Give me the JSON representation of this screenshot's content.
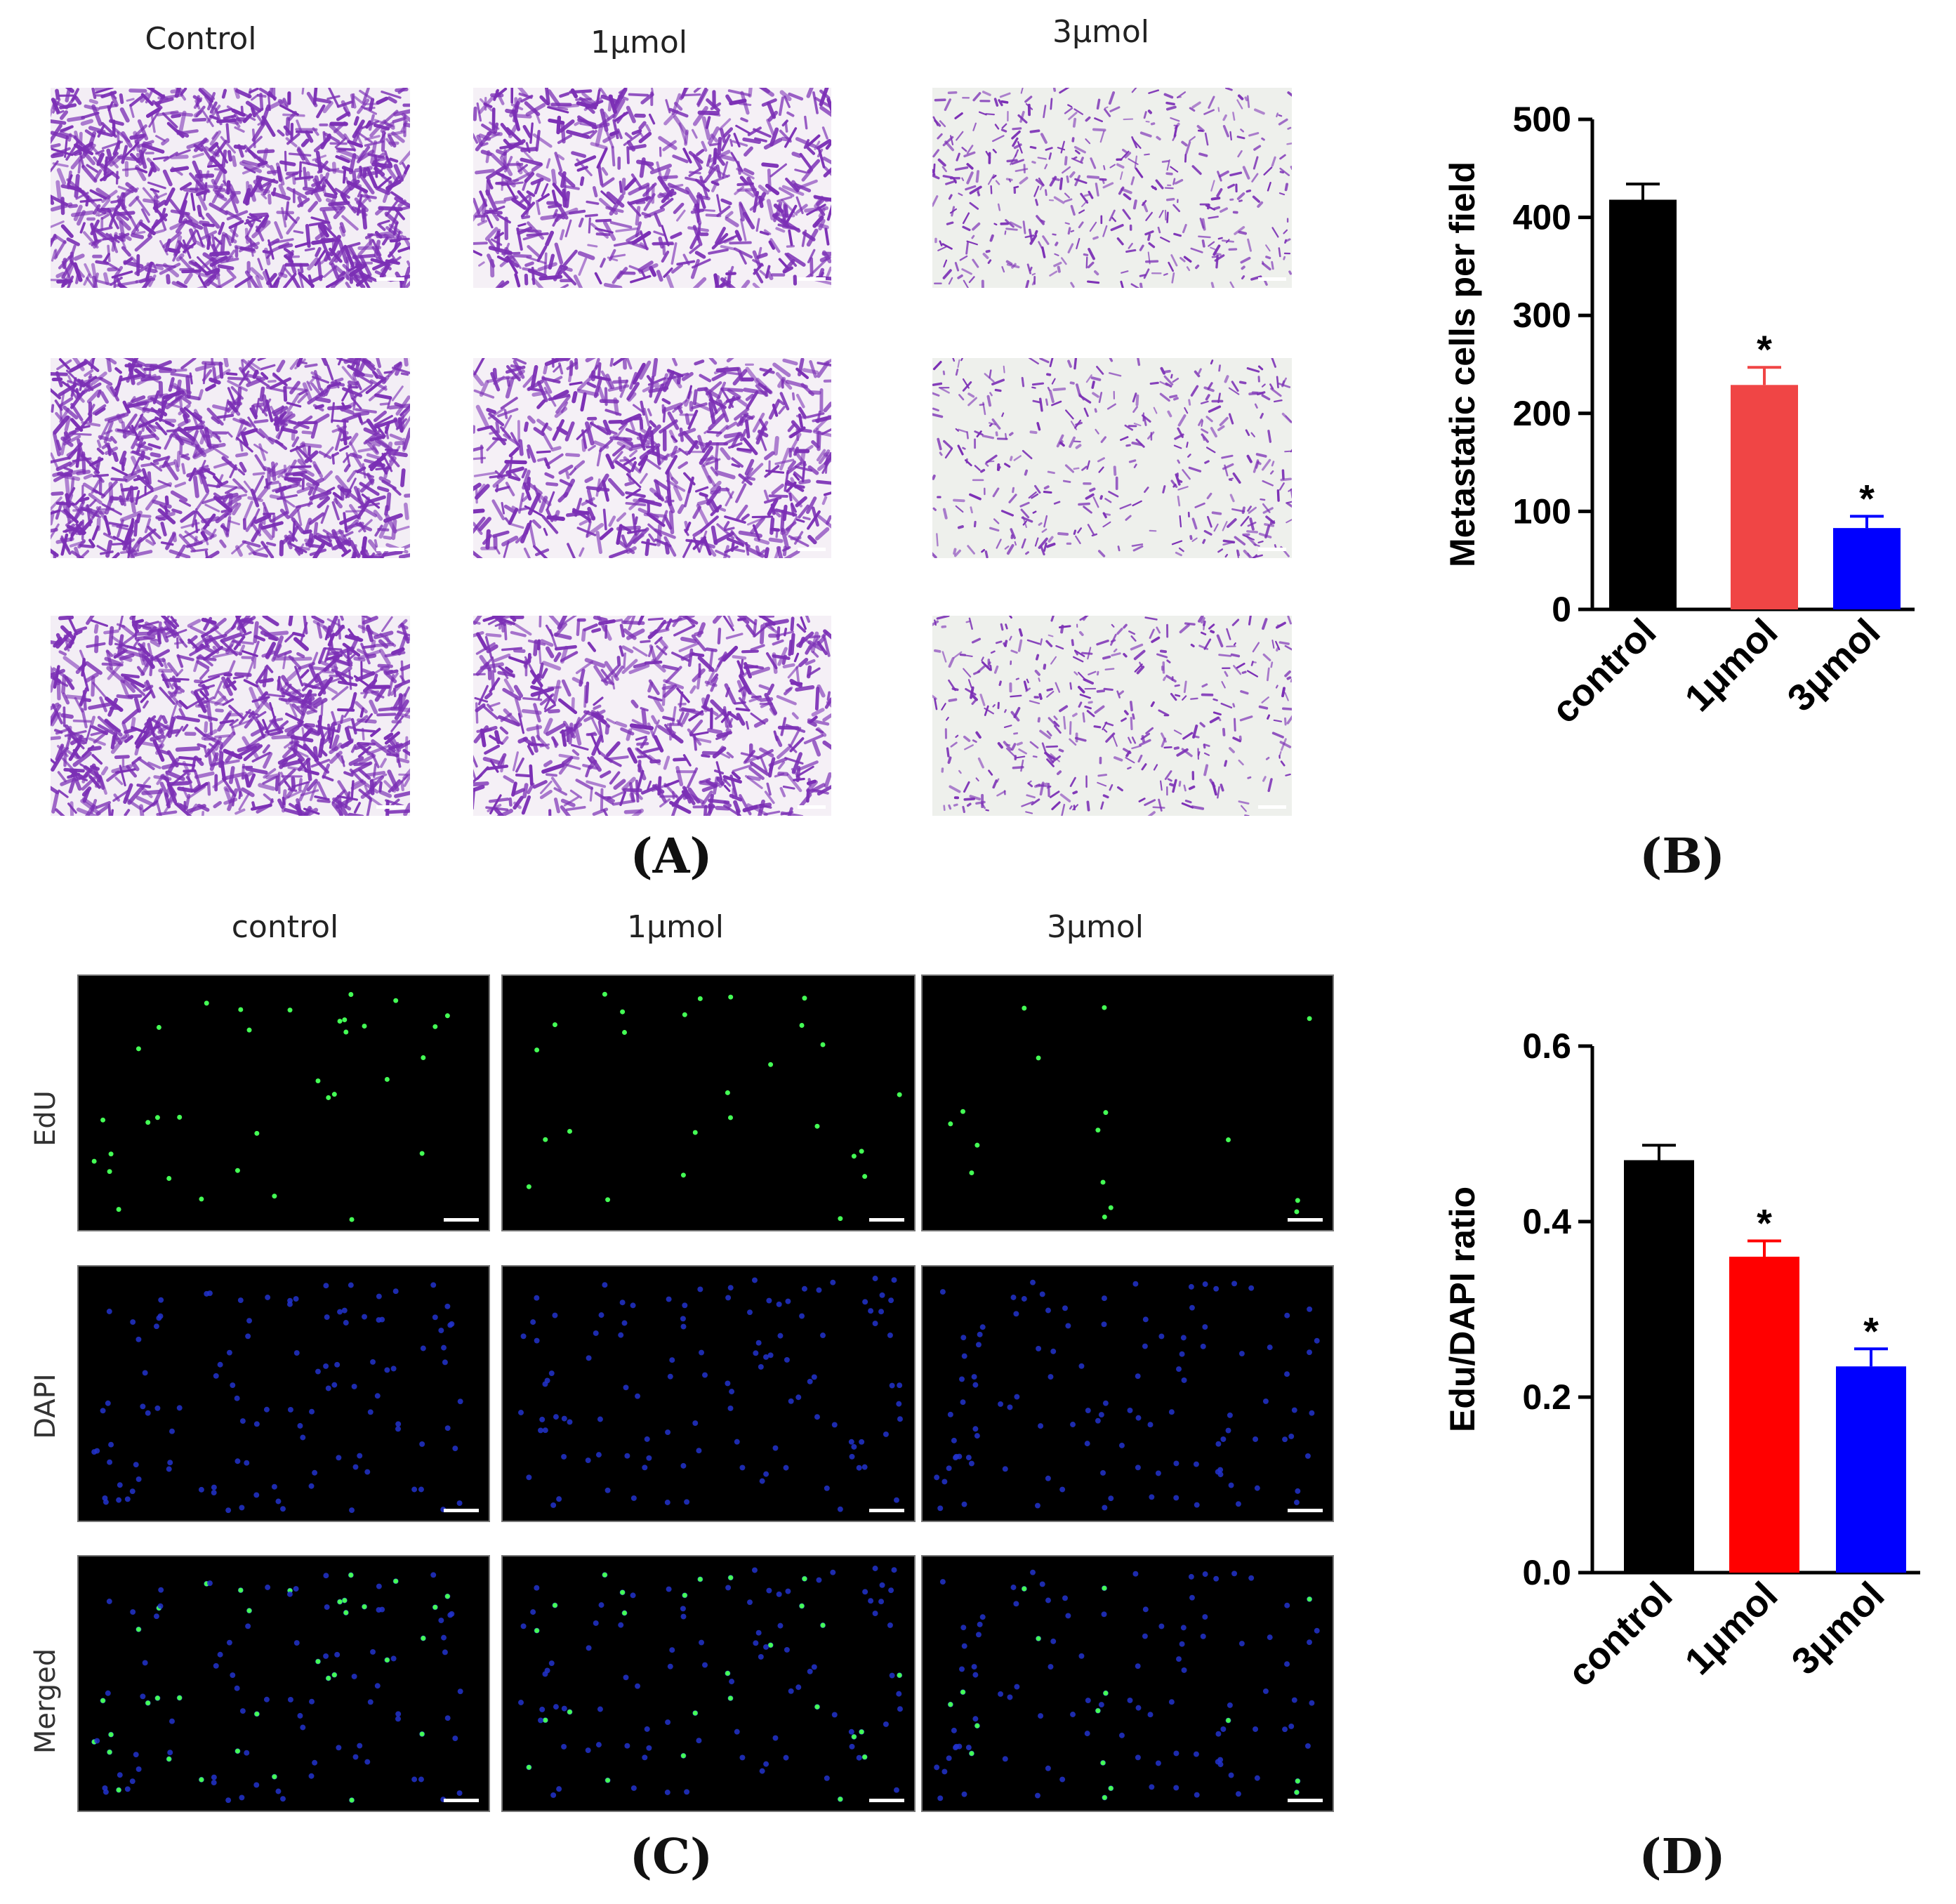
{
  "panel_a": {
    "columns": [
      "Control",
      "1μmol",
      "3μmol"
    ],
    "label": "(A)"
  },
  "panel_b": {
    "label": "(B)"
  },
  "panel_c": {
    "columns": [
      "control",
      "1μmol",
      "3μmol"
    ],
    "rows": [
      "EdU",
      "DAPI",
      "Merged"
    ],
    "label": "(C)"
  },
  "panel_d": {
    "label": "(D)"
  },
  "colors": {
    "control": "#000000",
    "one_umol_b": "#f04545",
    "one_umol_d": "#ff0000",
    "three_umol": "#0000ff",
    "stain": "#7b2fb5",
    "edu": "#44ff55",
    "dapi": "#2233cc"
  },
  "chart_data": [
    {
      "type": "bar",
      "panel": "B",
      "categories": [
        "control",
        "1μmol",
        "3μmol"
      ],
      "values": [
        418,
        229,
        83
      ],
      "errors": [
        16,
        18,
        12
      ],
      "significance": [
        "",
        "*",
        "*"
      ],
      "ylabel": "Metastatic cells per field",
      "ylim": [
        0,
        500
      ],
      "yticks": [
        "0",
        "100",
        "200",
        "300",
        "400",
        "500"
      ]
    },
    {
      "type": "bar",
      "panel": "D",
      "categories": [
        "control",
        "1μmol",
        "3μmol"
      ],
      "values": [
        0.47,
        0.36,
        0.235
      ],
      "errors": [
        0.017,
        0.018,
        0.02
      ],
      "significance": [
        "",
        "*",
        "*"
      ],
      "ylabel": "Edu/DAPI ratio",
      "ylim": [
        0,
        0.6
      ],
      "yticks": [
        "0.0",
        "0.2",
        "0.4",
        "0.6"
      ]
    }
  ]
}
